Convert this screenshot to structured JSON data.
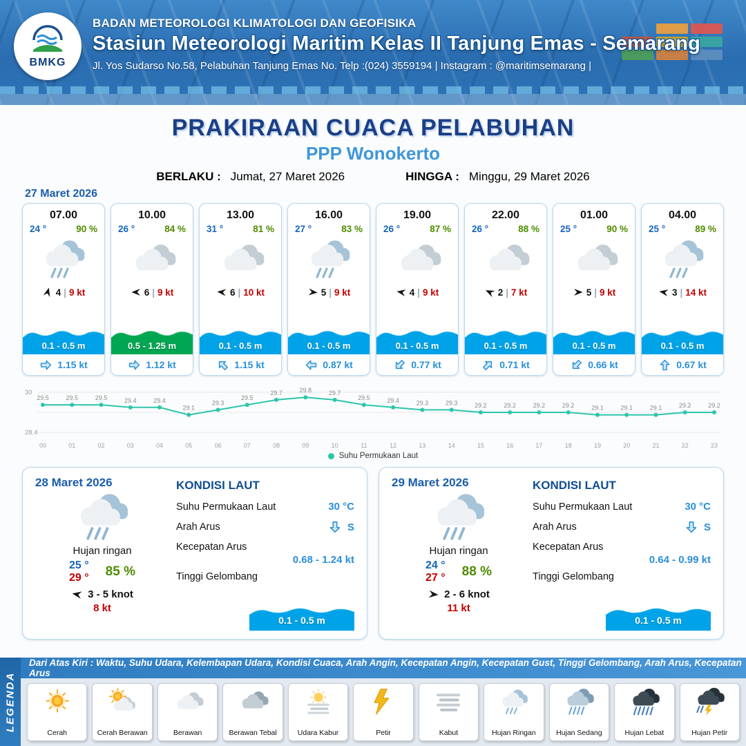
{
  "header": {
    "agency": "BADAN METEOROLOGI KLIMATOLOGI DAN GEOFISIKA",
    "station": "Stasiun Meteorologi Maritim Kelas II Tanjung Emas - Semarang",
    "address": "Jl. Yos Sudarso No.58, Pelabuhan Tanjung Emas No. Telp :(024) 3559194 | Instagram : @maritimsemarang |",
    "logo_text": "BMKG"
  },
  "title": {
    "main": "PRAKIRAAN CUACA PELABUHAN",
    "port": "PPP Wonokerto"
  },
  "validity": {
    "berlaku_label": "BERLAKU :",
    "berlaku_value": "Jumat, 27 Maret 2026",
    "hingga_label": "HINGGA :",
    "hingga_value": "Minggu, 29 Maret 2026"
  },
  "ui": {
    "wind_sep": "|"
  },
  "forecast": {
    "date": "27 Maret 2026",
    "cards": [
      {
        "time": "07.00",
        "temp": "24 °",
        "humidity": "90 %",
        "icon": "rain-light",
        "wind_dir_deg": -75,
        "wind_bft": "4",
        "wind_speed": "9 kt",
        "wave": "0.1 - 0.5 m",
        "wave_color": "#00a3e8",
        "current_dir_deg": 0,
        "current": "1.15 kt"
      },
      {
        "time": "10.00",
        "temp": "26 °",
        "humidity": "84 %",
        "icon": "cloud",
        "wind_dir_deg": 180,
        "wind_bft": "6",
        "wind_speed": "9 kt",
        "wave": "0.5 - 1.25 m",
        "wave_color": "#00a651",
        "current_dir_deg": 0,
        "current": "1.12 kt"
      },
      {
        "time": "13.00",
        "temp": "31 °",
        "humidity": "81 %",
        "icon": "cloud",
        "wind_dir_deg": 185,
        "wind_bft": "6",
        "wind_speed": "10 kt",
        "wave": "0.1 - 0.5 m",
        "wave_color": "#00a3e8",
        "current_dir_deg": -135,
        "current": "1.15 kt"
      },
      {
        "time": "16.00",
        "temp": "27 °",
        "humidity": "83 %",
        "icon": "rain-light",
        "wind_dir_deg": 5,
        "wind_bft": "5",
        "wind_speed": "9 kt",
        "wave": "0.1 - 0.5 m",
        "wave_color": "#00a3e8",
        "current_dir_deg": 180,
        "current": "0.87 kt"
      },
      {
        "time": "19.00",
        "temp": "26 °",
        "humidity": "87 %",
        "icon": "cloud",
        "wind_dir_deg": 190,
        "wind_bft": "4",
        "wind_speed": "9 kt",
        "wave": "0.1 - 0.5 m",
        "wave_color": "#00a3e8",
        "current_dir_deg": 135,
        "current": "0.77 kt"
      },
      {
        "time": "22.00",
        "temp": "26 °",
        "humidity": "88 %",
        "icon": "cloud",
        "wind_dir_deg": 205,
        "wind_bft": "2",
        "wind_speed": "7 kt",
        "wave": "0.1 - 0.5 m",
        "wave_color": "#00a3e8",
        "current_dir_deg": -45,
        "current": "0.71 kt"
      },
      {
        "time": "01.00",
        "temp": "25 °",
        "humidity": "90 %",
        "icon": "cloud",
        "wind_dir_deg": 0,
        "wind_bft": "5",
        "wind_speed": "9 kt",
        "wave": "0.1 - 0.5 m",
        "wave_color": "#00a3e8",
        "current_dir_deg": 135,
        "current": "0.66 kt"
      },
      {
        "time": "04.00",
        "temp": "25 °",
        "humidity": "89 %",
        "icon": "rain-light",
        "wind_dir_deg": 190,
        "wind_bft": "3",
        "wind_speed": "14 kt",
        "wave": "0.1 - 0.5 m",
        "wave_color": "#00a3e8",
        "current_dir_deg": -90,
        "current": "0.67 kt"
      }
    ]
  },
  "chart_data": {
    "type": "line",
    "title": "",
    "series_name": "Suhu Permukaan Laut",
    "x": [
      "00",
      "01",
      "02",
      "03",
      "04",
      "05",
      "06",
      "07",
      "08",
      "09",
      "10",
      "11",
      "12",
      "13",
      "14",
      "15",
      "16",
      "17",
      "18",
      "19",
      "20",
      "21",
      "22",
      "23"
    ],
    "values": [
      29.5,
      29.5,
      29.5,
      29.4,
      29.4,
      29.1,
      29.3,
      29.5,
      29.7,
      29.8,
      29.7,
      29.5,
      29.4,
      29.3,
      29.3,
      29.2,
      29.2,
      29.2,
      29.2,
      29.1,
      29.1,
      29.1,
      29.2,
      29.2
    ],
    "ylim": [
      28.4,
      30
    ],
    "xlabel": "",
    "ylabel": "",
    "grid": true,
    "legend_position": "bottom",
    "line_color": "#2cc5ac"
  },
  "days": [
    {
      "date": "28 Maret 2026",
      "icon": "rain-light",
      "condition": "Hujan ringan",
      "temp_min": "25 °",
      "humidity": "85 %",
      "temp_max": "29 °",
      "wind_dir_deg": 190,
      "wind_range": "3  - 5 knot",
      "gust": "8 kt",
      "sea": {
        "title": "KONDISI LAUT",
        "sst_label": "Suhu Permukaan Laut",
        "sst": "30 °C",
        "dir_label": "Arah Arus",
        "dir": "S",
        "speed_label": "Kecepatan Arus",
        "speed": "0.68 - 1.24 kt",
        "wave_label": "Tinggi Gelombang",
        "wave": "0.1 - 0.5 m",
        "wave_color": "#00a3e8"
      }
    },
    {
      "date": "29 Maret 2026",
      "icon": "rain-light",
      "condition": "Hujan ringan",
      "temp_min": "24 °",
      "humidity": "88 %",
      "temp_max": "27 °",
      "wind_dir_deg": 5,
      "wind_range": "2  - 6 knot",
      "gust": "11 kt",
      "sea": {
        "title": "KONDISI LAUT",
        "sst_label": "Suhu Permukaan Laut",
        "sst": "30 °C",
        "dir_label": "Arah Arus",
        "dir": "S",
        "speed_label": "Kecepatan Arus",
        "speed": "0.64 - 0.99 kt",
        "wave_label": "Tinggi Gelombang",
        "wave": "0.1 - 0.5 m",
        "wave_color": "#00a3e8"
      }
    }
  ],
  "legend": {
    "title": "LEGENDA",
    "note": "Dari Atas Kiri : Waktu, Suhu Udara, Kelembapan Udara, Kondisi Cuaca, Arah Angin, Kecepatan Angin, Kecepatan Gust, Tinggi Gelombang, Arah Arus, Kecepatan Arus",
    "items": [
      {
        "label": "Cerah",
        "icon": "sun"
      },
      {
        "label": "Cerah Berawan",
        "icon": "sun-cloud"
      },
      {
        "label": "Berawan",
        "icon": "cloud"
      },
      {
        "label": "Berawan Tebal",
        "icon": "cloud-thick"
      },
      {
        "label": "Udara Kabur",
        "icon": "haze"
      },
      {
        "label": "Petir",
        "icon": "lightning"
      },
      {
        "label": "Kabut",
        "icon": "fog"
      },
      {
        "label": "Hujan Ringan",
        "icon": "rain-light"
      },
      {
        "label": "Hujan Sedang",
        "icon": "rain-medium"
      },
      {
        "label": "Hujan Lebat",
        "icon": "rain-heavy"
      },
      {
        "label": "Hujan Petir",
        "icon": "storm"
      }
    ]
  }
}
